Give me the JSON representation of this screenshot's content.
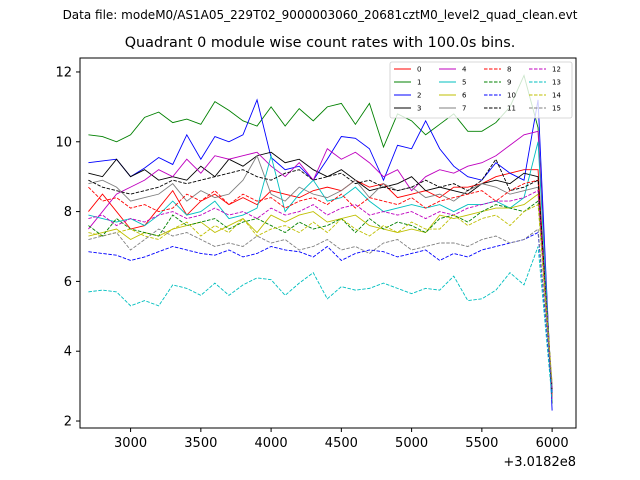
{
  "suptitle": "Data file: modeM0/AS1A05_229T02_9000003060_20681cztM0_level2_quad_clean.evt",
  "chart_data": {
    "type": "line",
    "title": "Quadrant 0 module wise count rates with 100.0s bins.",
    "xlabel": "",
    "ylabel": "",
    "x_offset_label": "+3.0182e8",
    "xlim": [
      2640,
      6170
    ],
    "ylim": [
      1.8,
      12.4
    ],
    "xticks": [
      3000,
      3500,
      4000,
      4500,
      5000,
      5500,
      6000
    ],
    "yticks": [
      2,
      4,
      6,
      8,
      10,
      12
    ],
    "grid": false,
    "legend_position": "top-right",
    "x": [
      2700,
      2800,
      2900,
      3000,
      3100,
      3200,
      3300,
      3400,
      3500,
      3600,
      3700,
      3800,
      3900,
      4000,
      4100,
      4200,
      4300,
      4400,
      4500,
      4600,
      4700,
      4800,
      4900,
      5000,
      5100,
      5200,
      5300,
      5400,
      5500,
      5600,
      5700,
      5800,
      5900,
      6000
    ],
    "series": [
      {
        "name": "0",
        "color": "#ff0000",
        "dash": "solid",
        "values": [
          8.0,
          8.5,
          8.0,
          7.5,
          7.6,
          8.1,
          8.6,
          7.9,
          8.3,
          8.5,
          8.2,
          8.4,
          8.2,
          8.6,
          8.5,
          8.4,
          8.6,
          8.7,
          8.6,
          8.9,
          8.7,
          8.8,
          8.4,
          8.5,
          8.6,
          8.4,
          8.7,
          8.7,
          8.8,
          9.0,
          9.1,
          9.2,
          9.2,
          2.6
        ]
      },
      {
        "name": "1",
        "color": "#008000",
        "dash": "solid",
        "values": [
          10.2,
          10.15,
          10.0,
          10.2,
          10.7,
          10.85,
          10.55,
          10.65,
          10.5,
          11.15,
          10.9,
          10.6,
          10.45,
          11.0,
          10.45,
          10.95,
          10.6,
          11.0,
          11.1,
          10.5,
          11.1,
          9.85,
          10.8,
          10.6,
          10.2,
          10.5,
          10.8,
          10.3,
          10.3,
          10.55,
          11.0,
          11.9,
          10.4,
          2.5
        ]
      },
      {
        "name": "2",
        "color": "#0000ff",
        "dash": "solid",
        "values": [
          9.4,
          9.45,
          9.5,
          9.0,
          9.25,
          9.55,
          9.35,
          10.2,
          9.5,
          10.15,
          10.0,
          10.2,
          11.2,
          9.55,
          9.2,
          9.3,
          8.9,
          9.5,
          10.15,
          10.1,
          9.8,
          8.9,
          9.9,
          9.8,
          10.6,
          9.8,
          9.3,
          9.0,
          8.9,
          9.4,
          9.1,
          8.9,
          11.2,
          2.3
        ]
      },
      {
        "name": "3",
        "color": "#000000",
        "dash": "solid",
        "values": [
          9.1,
          9.0,
          9.5,
          9.0,
          9.2,
          8.9,
          9.0,
          8.9,
          9.3,
          9.0,
          9.5,
          9.3,
          9.6,
          9.7,
          9.4,
          9.5,
          9.2,
          9.0,
          9.2,
          8.9,
          8.6,
          8.7,
          8.8,
          9.0,
          8.6,
          8.7,
          8.6,
          8.5,
          8.8,
          8.9,
          8.8,
          9.1,
          9.0,
          2.8
        ]
      },
      {
        "name": "4",
        "color": "#bf00bf",
        "dash": "solid",
        "values": [
          7.5,
          8.0,
          8.5,
          8.7,
          8.9,
          9.2,
          9.0,
          9.5,
          9.1,
          9.6,
          9.5,
          9.6,
          9.7,
          9.3,
          9.0,
          9.4,
          8.9,
          9.8,
          9.5,
          9.7,
          9.4,
          9.0,
          9.2,
          8.6,
          9.0,
          9.2,
          9.1,
          9.3,
          9.4,
          9.6,
          9.9,
          10.2,
          10.3,
          2.6
        ]
      },
      {
        "name": "5",
        "color": "#00bfbf",
        "dash": "solid",
        "values": [
          7.9,
          7.8,
          7.7,
          7.8,
          7.6,
          7.9,
          8.3,
          7.9,
          8.0,
          8.3,
          7.8,
          7.9,
          8.1,
          9.6,
          8.0,
          8.5,
          8.9,
          8.3,
          8.4,
          8.7,
          8.3,
          8.0,
          8.1,
          8.2,
          8.1,
          8.2,
          8.0,
          8.2,
          8.2,
          8.3,
          8.1,
          8.4,
          10.0,
          2.7
        ]
      },
      {
        "name": "6",
        "color": "#bfbf00",
        "dash": "solid",
        "values": [
          7.3,
          7.4,
          7.5,
          7.2,
          7.4,
          7.3,
          7.5,
          7.6,
          7.7,
          7.4,
          7.6,
          7.8,
          7.4,
          7.9,
          7.7,
          7.9,
          8.0,
          7.7,
          7.8,
          7.9,
          7.6,
          7.5,
          7.4,
          7.5,
          7.4,
          7.9,
          7.8,
          7.9,
          8.0,
          8.1,
          8.1,
          8.2,
          8.5,
          2.9
        ]
      },
      {
        "name": "7",
        "color": "#808080",
        "dash": "solid",
        "values": [
          8.8,
          8.9,
          8.7,
          8.3,
          8.4,
          8.5,
          8.8,
          8.3,
          8.6,
          8.4,
          8.5,
          8.9,
          9.6,
          8.5,
          8.3,
          8.7,
          8.5,
          8.4,
          8.6,
          8.9,
          8.4,
          8.8,
          8.6,
          8.7,
          8.4,
          8.5,
          8.3,
          8.6,
          8.8,
          8.7,
          8.5,
          8.6,
          8.7,
          3.0
        ]
      },
      {
        "name": "8",
        "color": "#ff0000",
        "dash": "dashed",
        "values": [
          8.7,
          8.3,
          8.4,
          8.1,
          8.2,
          8.0,
          8.1,
          8.5,
          8.3,
          8.6,
          8.2,
          8.5,
          8.3,
          8.4,
          8.1,
          8.3,
          8.4,
          8.2,
          8.5,
          8.1,
          8.4,
          8.3,
          8.2,
          8.4,
          8.1,
          8.3,
          8.4,
          8.5,
          8.6,
          8.3,
          8.6,
          8.8,
          8.9,
          2.7
        ]
      },
      {
        "name": "9",
        "color": "#008000",
        "dash": "dashed",
        "values": [
          7.6,
          7.3,
          7.8,
          7.5,
          7.4,
          7.3,
          7.9,
          7.6,
          7.7,
          7.8,
          7.5,
          7.7,
          7.8,
          7.6,
          7.4,
          7.7,
          7.5,
          7.6,
          7.8,
          7.4,
          7.8,
          7.5,
          7.7,
          7.6,
          7.4,
          7.8,
          7.9,
          7.7,
          8.0,
          8.2,
          8.1,
          8.0,
          8.3,
          2.8
        ]
      },
      {
        "name": "10",
        "color": "#0000ff",
        "dash": "dashed",
        "values": [
          6.85,
          6.8,
          6.75,
          6.6,
          6.7,
          6.85,
          7.0,
          6.9,
          6.8,
          6.75,
          6.9,
          6.7,
          6.8,
          7.0,
          6.9,
          6.85,
          6.7,
          7.0,
          6.6,
          6.8,
          6.9,
          6.85,
          6.7,
          6.8,
          6.9,
          6.6,
          6.8,
          6.7,
          6.9,
          7.0,
          7.1,
          7.2,
          7.4,
          2.8
        ]
      },
      {
        "name": "11",
        "color": "#000000",
        "dash": "dashed",
        "values": [
          8.9,
          8.7,
          8.6,
          8.5,
          8.6,
          8.7,
          8.9,
          8.8,
          8.9,
          9.0,
          9.1,
          9.2,
          9.0,
          8.9,
          9.1,
          9.2,
          8.9,
          9.0,
          9.1,
          8.8,
          8.9,
          8.7,
          8.6,
          8.7,
          8.9,
          8.7,
          8.8,
          8.6,
          8.9,
          9.5,
          8.6,
          8.7,
          8.9,
          2.9
        ]
      },
      {
        "name": "12",
        "color": "#bf00bf",
        "dash": "dashed",
        "values": [
          7.8,
          7.9,
          7.6,
          7.8,
          7.7,
          7.9,
          8.0,
          7.8,
          7.9,
          8.1,
          7.9,
          8.0,
          7.8,
          8.1,
          7.9,
          8.0,
          8.2,
          7.9,
          8.1,
          8.2,
          7.9,
          8.0,
          7.9,
          8.0,
          7.8,
          8.0,
          7.9,
          8.1,
          8.2,
          8.3,
          8.3,
          8.4,
          8.6,
          2.9
        ]
      },
      {
        "name": "13",
        "color": "#00bfbf",
        "dash": "dashed",
        "values": [
          5.7,
          5.75,
          5.7,
          5.3,
          5.45,
          5.3,
          5.9,
          5.8,
          5.6,
          5.95,
          5.6,
          5.9,
          6.1,
          6.05,
          5.6,
          5.95,
          6.25,
          5.5,
          5.85,
          5.75,
          5.8,
          5.95,
          5.8,
          5.65,
          5.8,
          5.75,
          6.15,
          5.45,
          5.5,
          5.75,
          6.25,
          5.9,
          7.0,
          2.6
        ]
      },
      {
        "name": "14",
        "color": "#bfbf00",
        "dash": "dashed",
        "values": [
          7.4,
          7.3,
          7.4,
          7.5,
          7.3,
          7.2,
          7.5,
          7.7,
          7.3,
          7.6,
          7.4,
          7.8,
          7.3,
          7.5,
          7.6,
          7.4,
          7.7,
          7.4,
          7.8,
          7.5,
          7.3,
          7.6,
          7.4,
          7.7,
          7.5,
          7.5,
          7.9,
          7.6,
          7.8,
          7.9,
          7.6,
          8.0,
          8.2,
          3.1
        ]
      },
      {
        "name": "15",
        "color": "#808080",
        "dash": "dashed",
        "values": [
          7.2,
          7.3,
          7.4,
          6.9,
          7.2,
          7.5,
          7.3,
          7.4,
          7.2,
          7.0,
          7.1,
          7.0,
          7.3,
          7.1,
          7.2,
          6.9,
          7.0,
          7.2,
          6.9,
          7.0,
          6.8,
          7.1,
          7.2,
          6.9,
          7.0,
          7.1,
          7.1,
          7.0,
          7.2,
          7.3,
          7.1,
          7.2,
          7.5,
          3.0
        ]
      }
    ]
  }
}
